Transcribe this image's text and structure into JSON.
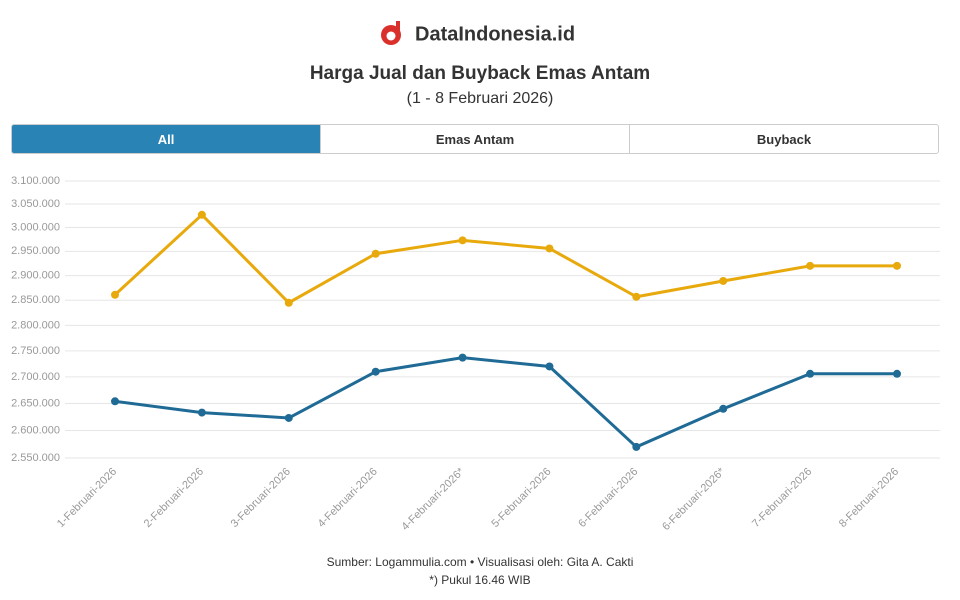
{
  "brand": "DataIndonesia.id",
  "tab_all": "All",
  "chart_data": {
    "type": "line",
    "title": "Harga Jual dan Buyback Emas Antam",
    "subtitle": "(1 - 8 Februari 2026)",
    "categories": [
      "1-Februari-2026",
      "2-Februari-2026",
      "3-Februari-2026",
      "4-Februari-2026",
      "4-Februari-2026*",
      "5-Februari-2026",
      "6-Februari-2026",
      "6-Februari-2026*",
      "7-Februari-2026",
      "8-Februari-2026"
    ],
    "series": [
      {
        "name": "Emas Antam",
        "color": "#e8a90c",
        "values": [
          2861000,
          3027000,
          2845000,
          2945000,
          2973000,
          2956000,
          2857000,
          2889000,
          2920000,
          2920000
        ]
      },
      {
        "name": "Buyback",
        "color": "#1f6b96",
        "values": [
          2654000,
          2633000,
          2623000,
          2710000,
          2737000,
          2720000,
          2570000,
          2640000,
          2706000,
          2706000
        ]
      }
    ],
    "log_scale": true,
    "grid": true,
    "ylim": [
      2550000,
      3100000
    ],
    "yticks": [
      {
        "value": 2550000,
        "label": "2.550.000"
      },
      {
        "value": 2600000,
        "label": "2.600.000"
      },
      {
        "value": 2650000,
        "label": "2.650.000"
      },
      {
        "value": 2700000,
        "label": "2.700.000"
      },
      {
        "value": 2750000,
        "label": "2.750.000"
      },
      {
        "value": 2800000,
        "label": "2.800.000"
      },
      {
        "value": 2850000,
        "label": "2.850.000"
      },
      {
        "value": 2900000,
        "label": "2.900.000"
      },
      {
        "value": 2950000,
        "label": "2.950.000"
      },
      {
        "value": 3000000,
        "label": "3.000.000"
      },
      {
        "value": 3050000,
        "label": "3.050.000"
      },
      {
        "value": 3100000,
        "label": "3.100.000"
      }
    ],
    "source": "Sumber: Logammulia.com • Visualisasi oleh: Gita A. Cakti",
    "note": "*) Pukul 16.46 WIB"
  }
}
